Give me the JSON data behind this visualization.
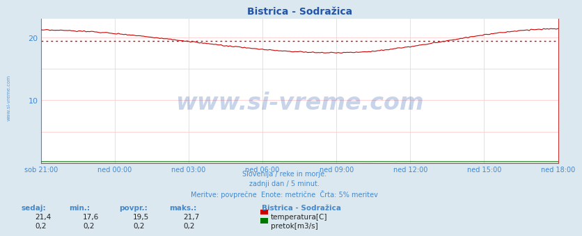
{
  "title": "Bistrica - Sodražica",
  "fig_bg_color": "#dce8f0",
  "plot_bg_color": "#ffffff",
  "title_color": "#2255aa",
  "title_fontsize": 10,
  "grid_h_color": "#ffcccc",
  "grid_v_color": "#ffcccc",
  "yticks": [
    10,
    20
  ],
  "ylim": [
    0,
    23
  ],
  "n_points": 288,
  "temp_avg": 19.5,
  "temp_line_color": "#cc0000",
  "flow_line_color": "#007700",
  "avg_line_color": "#cc0000",
  "xtick_labels": [
    "sob 21:00",
    "ned 00:00",
    "ned 03:00",
    "ned 06:00",
    "ned 09:00",
    "ned 12:00",
    "ned 15:00",
    "ned 18:00"
  ],
  "xtick_color": "#4488cc",
  "ytick_color": "#4488cc",
  "left_spine_color": "#4488cc",
  "bottom_spine_color": "#cc3333",
  "right_spine_color": "#cc3333",
  "watermark_text": "www.si-vreme.com",
  "watermark_color": "#2255aa",
  "watermark_alpha": 0.25,
  "watermark_fontsize": 24,
  "left_label": "www.si-vreme.com",
  "left_label_color": "#4488cc",
  "footer_line1": "Slovenija / reke in morje.",
  "footer_line2": "zadnji dan / 5 minut.",
  "footer_line3": "Meritve: povprečne  Enote: metrične  Črta: 5% meritev",
  "footer_color": "#4488cc",
  "footer_fontsize": 7,
  "table_header": [
    "sedaj:",
    "min.:",
    "povpr.:",
    "maks.:"
  ],
  "table_row1_vals": [
    "21,4",
    "17,6",
    "19,5",
    "21,7"
  ],
  "table_row2_vals": [
    "0,2",
    "0,2",
    "0,2",
    "0,2"
  ],
  "table_header_color": "#4488cc",
  "table_val_color": "#222222",
  "table_fontsize": 7.5,
  "legend_title": "Bistrica - Sodražica",
  "legend_temp_label": "temperatura[C]",
  "legend_flow_label": "pretok[m3/s]",
  "legend_temp_color": "#cc0000",
  "legend_flow_color": "#007700",
  "legend_color": "#4488cc",
  "legend_fontsize": 7.5
}
